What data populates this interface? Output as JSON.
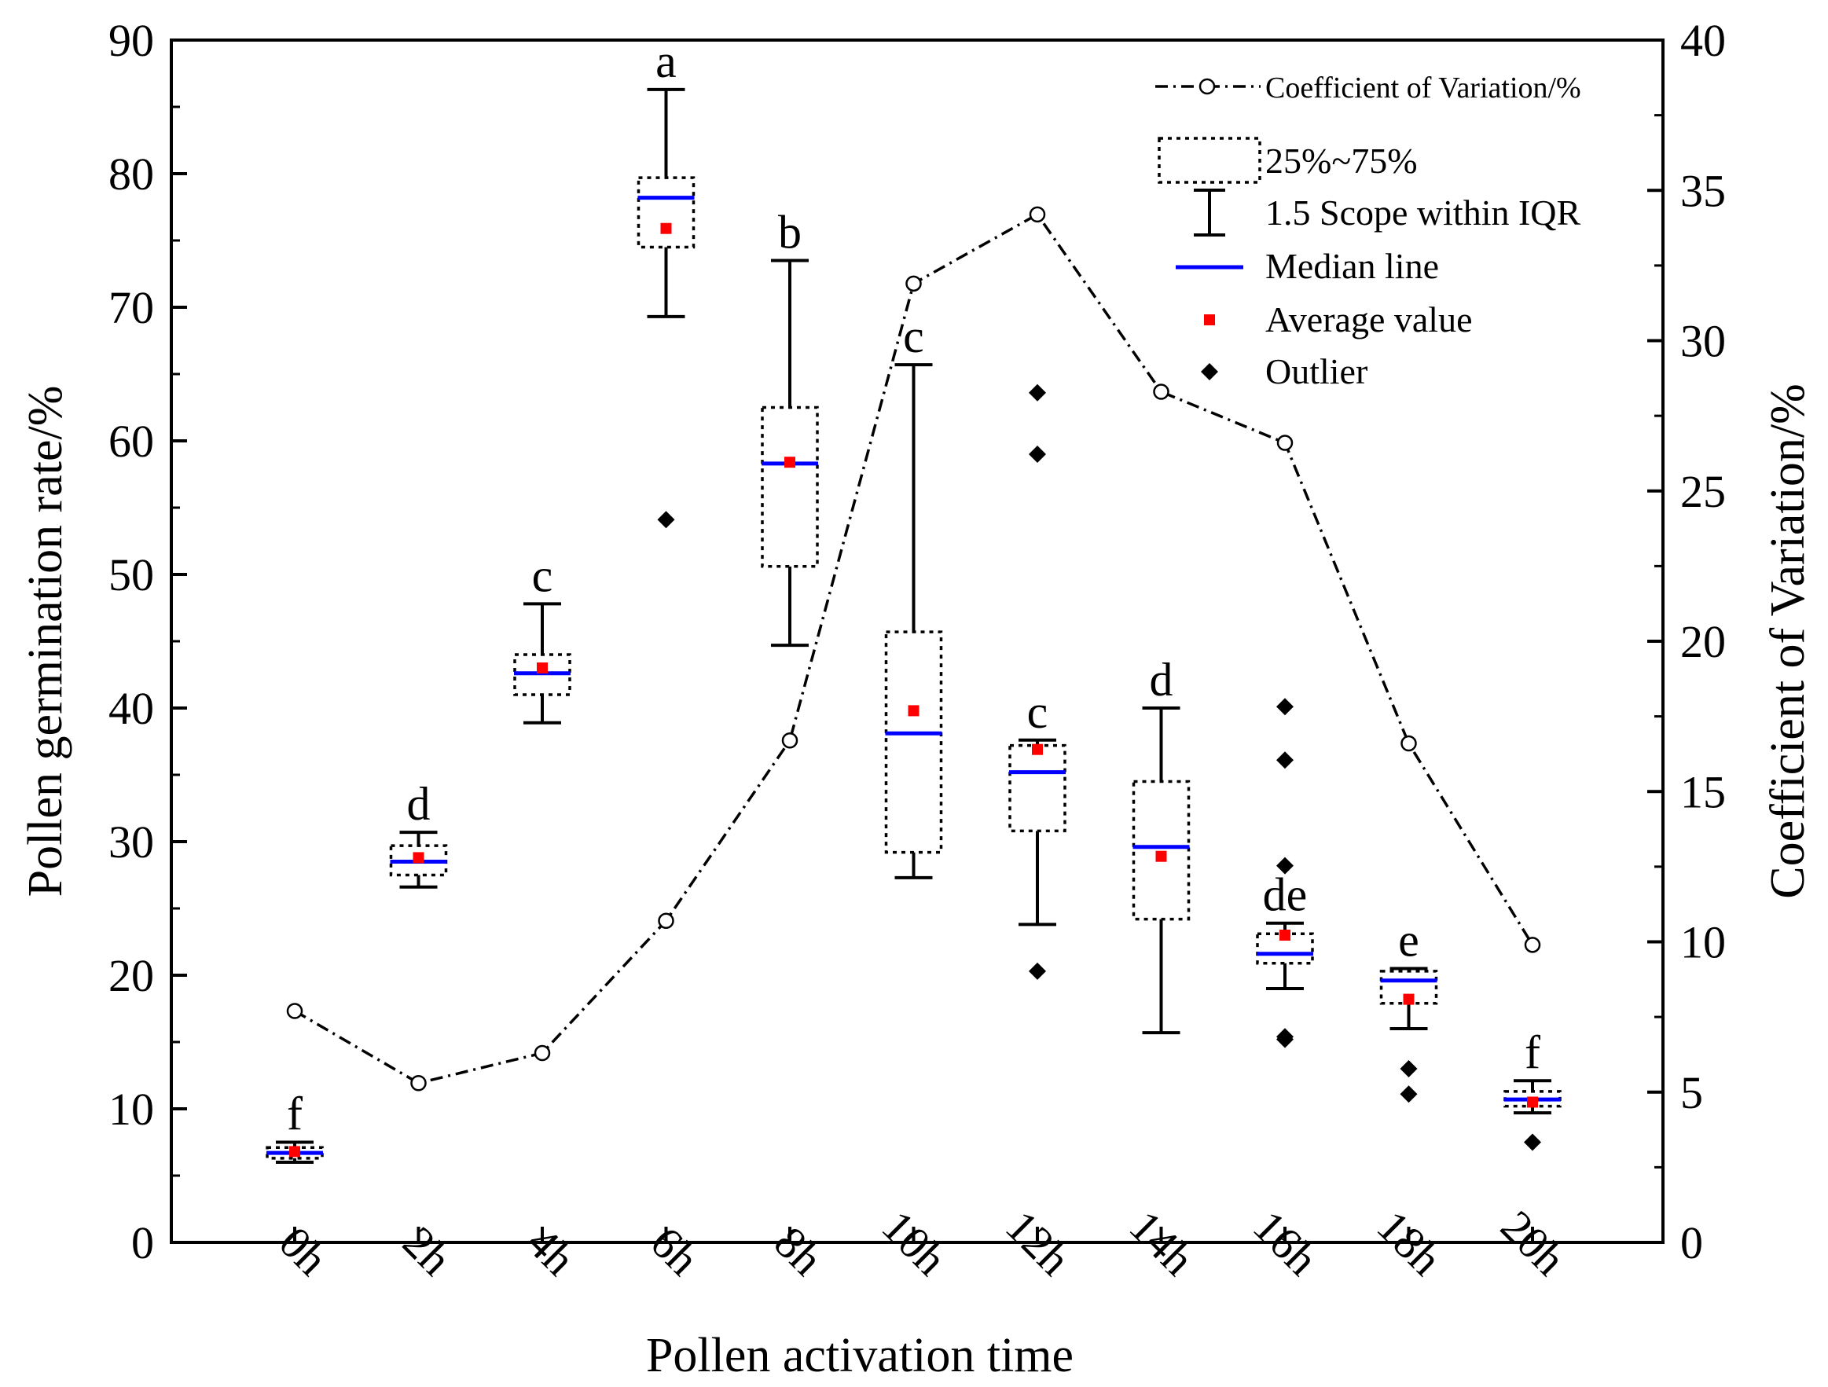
{
  "chart_data": {
    "type": "box",
    "title": "",
    "xlabel": "Pollen activation time",
    "ylabel": "Pollen germination rate/%",
    "y2label": "Coefficient of Variation/%",
    "ylim": [
      0,
      90
    ],
    "y2lim": [
      0,
      40
    ],
    "yticks": [
      0,
      10,
      20,
      30,
      40,
      50,
      60,
      70,
      80,
      90
    ],
    "y2ticks": [
      0,
      5,
      10,
      15,
      20,
      25,
      30,
      35,
      40
    ],
    "categories": [
      "0h",
      "2h",
      "4h",
      "6h",
      "8h",
      "10h",
      "12h",
      "14h",
      "16h",
      "18h",
      "20h"
    ],
    "boxes": [
      {
        "category": "0h",
        "q1": 6.3,
        "median": 6.7,
        "q3": 7.1,
        "whisker_low": 6.0,
        "whisker_high": 7.5,
        "mean": 6.8,
        "outliers": [],
        "group": "f"
      },
      {
        "category": "2h",
        "q1": 27.5,
        "median": 28.5,
        "q3": 29.7,
        "whisker_low": 26.6,
        "whisker_high": 30.7,
        "mean": 28.8,
        "outliers": [],
        "group": "d"
      },
      {
        "category": "4h",
        "q1": 41.0,
        "median": 42.6,
        "q3": 44.0,
        "whisker_low": 38.9,
        "whisker_high": 47.8,
        "mean": 43.0,
        "outliers": [],
        "group": "c"
      },
      {
        "category": "6h",
        "q1": 74.5,
        "median": 78.2,
        "q3": 79.7,
        "whisker_low": 69.3,
        "whisker_high": 86.3,
        "mean": 75.9,
        "outliers": [
          54.1
        ],
        "group": "a"
      },
      {
        "category": "8h",
        "q1": 50.6,
        "median": 58.3,
        "q3": 62.5,
        "whisker_low": 44.7,
        "whisker_high": 73.5,
        "mean": 58.4,
        "outliers": [],
        "group": "b"
      },
      {
        "category": "10h",
        "q1": 29.2,
        "median": 38.1,
        "q3": 45.7,
        "whisker_low": 27.3,
        "whisker_high": 65.7,
        "mean": 39.8,
        "outliers": [],
        "group": "c"
      },
      {
        "category": "12h",
        "q1": 30.8,
        "median": 35.2,
        "q3": 37.2,
        "whisker_low": 23.8,
        "whisker_high": 37.6,
        "mean": 36.9,
        "outliers": [
          63.6,
          59.0,
          20.3
        ],
        "group": "c"
      },
      {
        "category": "14h",
        "q1": 24.2,
        "median": 29.6,
        "q3": 34.5,
        "whisker_low": 15.7,
        "whisker_high": 40.0,
        "mean": 28.9,
        "outliers": [],
        "group": "d"
      },
      {
        "category": "16h",
        "q1": 20.9,
        "median": 21.6,
        "q3": 23.1,
        "whisker_low": 19.0,
        "whisker_high": 23.9,
        "mean": 23.0,
        "outliers": [
          40.1,
          36.1,
          28.2,
          15.4,
          15.2
        ],
        "group": "de"
      },
      {
        "category": "18h",
        "q1": 17.9,
        "median": 19.6,
        "q3": 20.3,
        "whisker_low": 16.0,
        "whisker_high": 20.5,
        "mean": 18.2,
        "outliers": [
          13.0,
          11.1
        ],
        "group": "e"
      },
      {
        "category": "20h",
        "q1": 10.2,
        "median": 10.7,
        "q3": 11.3,
        "whisker_low": 9.7,
        "whisker_high": 12.1,
        "mean": 10.5,
        "outliers": [
          7.5
        ],
        "group": "f"
      }
    ],
    "cv_series": {
      "name": "Coefficient of Variation/%",
      "axis": "right",
      "values": [
        7.7,
        5.3,
        6.3,
        10.7,
        16.7,
        31.9,
        34.2,
        28.3,
        26.6,
        16.6,
        9.9
      ]
    },
    "legend": {
      "placement": "top-right",
      "entries": [
        {
          "key": "cv",
          "label": "Coefficient of Variation/%"
        },
        {
          "key": "box",
          "label": "25%~75%"
        },
        {
          "key": "whisker",
          "label": "1.5 Scope within IQR"
        },
        {
          "key": "median",
          "label": "Median line"
        },
        {
          "key": "mean",
          "label": "Average value"
        },
        {
          "key": "outlier",
          "label": "Outlier"
        }
      ]
    },
    "colors": {
      "median": "#0000ff",
      "mean": "#ff0000",
      "outlier": "#000000",
      "box": "#000000",
      "cv_line": "#000000"
    }
  }
}
